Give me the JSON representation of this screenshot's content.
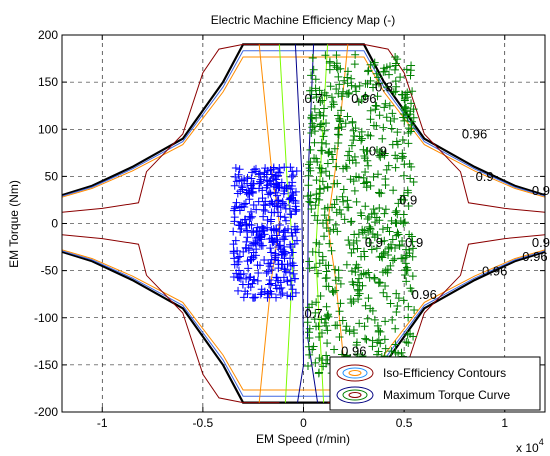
{
  "chart_data": {
    "type": "contour",
    "title": "Electric Machine Efficiency Map (-)",
    "xlabel": "EM Speed (r/min)",
    "ylabel": "EM Torque (Nm)",
    "x_multiplier": "x 10",
    "x_multiplier_exp": "4",
    "xlim": [
      -1.2,
      1.2
    ],
    "ylim": [
      -200,
      200
    ],
    "xticks": [
      -1,
      -0.5,
      0,
      0.5,
      1
    ],
    "xtick_labels": [
      "-1",
      "-0.5",
      "0",
      "0.5",
      "1"
    ],
    "yticks": [
      -200,
      -150,
      -100,
      -50,
      0,
      50,
      100,
      150,
      200
    ],
    "ytick_labels": [
      "-200",
      "-150",
      "-100",
      "-50",
      "0",
      "50",
      "100",
      "150",
      "200"
    ],
    "grid": true,
    "legend_position": "bottom-right",
    "legend": [
      "Iso-Efficiency Contours",
      "Maximum Torque Curve"
    ],
    "max_torque_curve": {
      "x": [
        -1.2,
        -1.05,
        -0.85,
        -0.6,
        -0.4,
        -0.3,
        -0.08,
        0.08,
        0.3,
        0.4,
        0.6,
        0.85,
        1.05,
        1.2
      ],
      "y": [
        30,
        40,
        60,
        90,
        150,
        190,
        190,
        190,
        190,
        150,
        90,
        60,
        40,
        30
      ]
    },
    "contour_labels": [
      {
        "text": "0.9",
        "x": 0.37,
        "y": 72
      },
      {
        "text": "0.9",
        "x": 0.52,
        "y": 20
      },
      {
        "text": "0.9",
        "x": 0.9,
        "y": 45
      },
      {
        "text": "0.9",
        "x": 0.35,
        "y": -25
      },
      {
        "text": "0.9",
        "x": 0.55,
        "y": -25
      },
      {
        "text": "0.9",
        "x": 1.18,
        "y": -25
      },
      {
        "text": "0.9",
        "x": 1.18,
        "y": 30
      },
      {
        "text": "0.96",
        "x": 0.3,
        "y": 128
      },
      {
        "text": "0.8",
        "x": 0.4,
        "y": 140
      },
      {
        "text": "0.7",
        "x": 0.05,
        "y": 128
      },
      {
        "text": "0.7",
        "x": 0.05,
        "y": -100
      },
      {
        "text": "0.96",
        "x": 0.25,
        "y": -140
      },
      {
        "text": "0.96",
        "x": 0.6,
        "y": -80
      },
      {
        "text": "0.96",
        "x": 1.15,
        "y": -40
      },
      {
        "text": "0.96",
        "x": 0.85,
        "y": 90
      },
      {
        "text": "0.96",
        "x": 0.95,
        "y": -55
      }
    ],
    "series": [
      {
        "name": "Iso-Efficiency Contours",
        "color": "#8b0000"
      },
      {
        "name": "Maximum Torque Curve",
        "color": "#000000"
      }
    ],
    "operating_points": [
      {
        "color": "#0000ff",
        "x_range": [
          -0.35,
          -0.03
        ],
        "y_range": [
          -80,
          60
        ]
      },
      {
        "color": "#008000",
        "x_range": [
          0.02,
          0.55
        ],
        "y_range": [
          -160,
          180
        ]
      }
    ]
  }
}
